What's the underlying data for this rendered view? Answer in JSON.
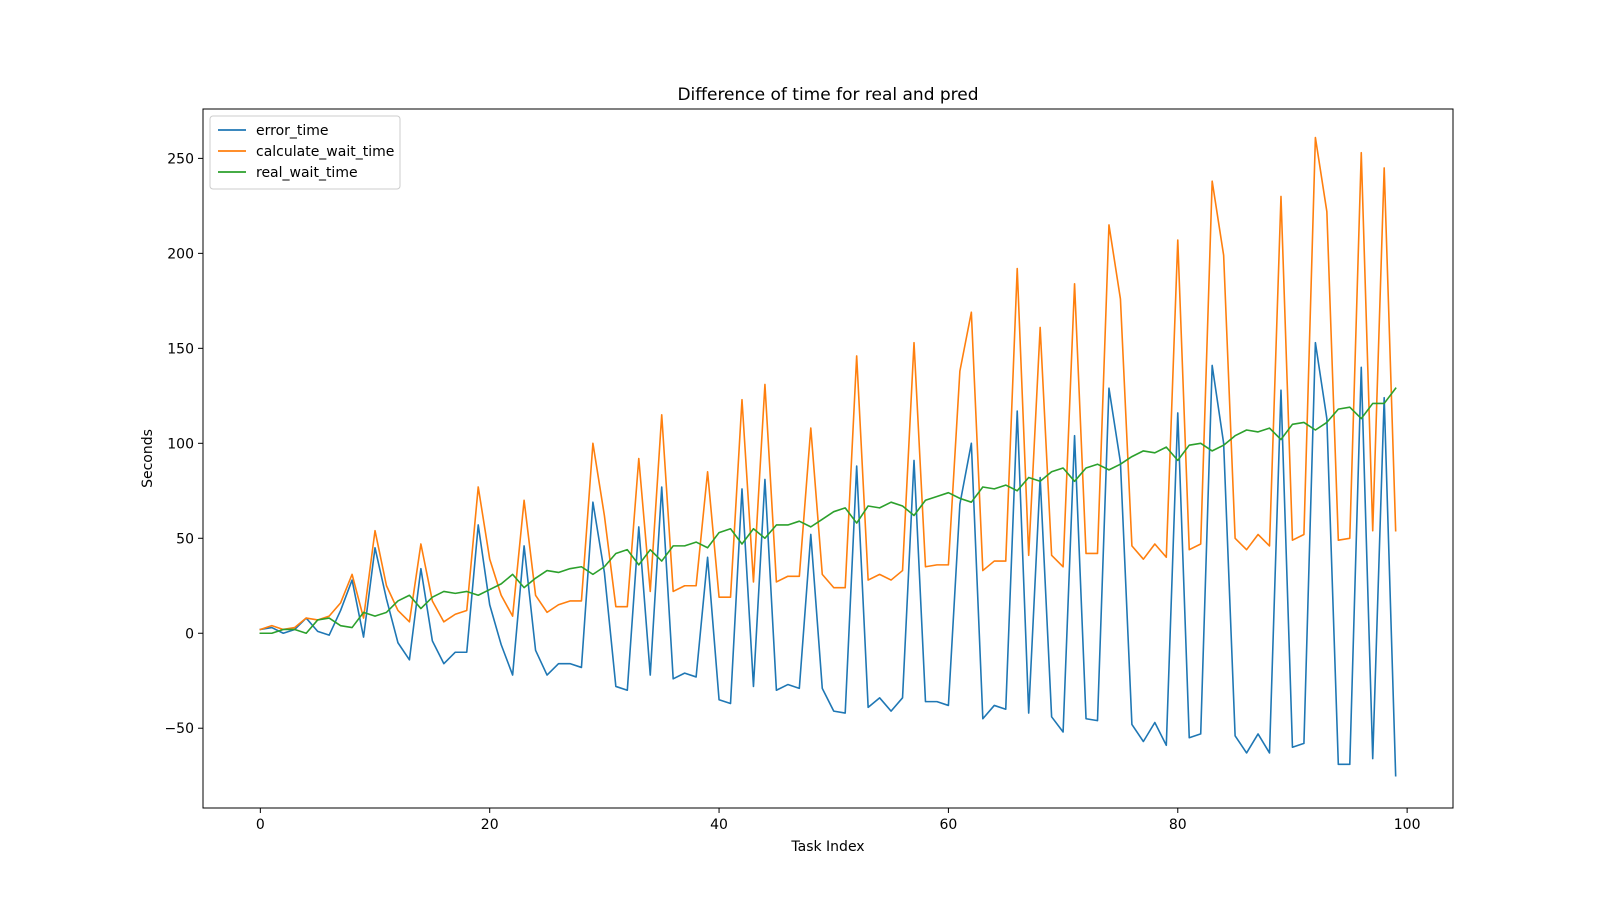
{
  "chart_data": {
    "type": "line",
    "title": "Difference of time for real and pred",
    "xlabel": "Task Index",
    "ylabel": "Seconds",
    "xlim": [
      -5,
      104
    ],
    "ylim": [
      -92,
      276
    ],
    "xticks": [
      0,
      20,
      40,
      60,
      80,
      100
    ],
    "yticks": [
      -50,
      0,
      50,
      100,
      150,
      200,
      250
    ],
    "grid": false,
    "legend_position": "upper left",
    "series": [
      {
        "name": "error_time",
        "color": "#1f77b4",
        "values": [
          2,
          3,
          0,
          2,
          8,
          1,
          -1,
          12,
          28,
          -2,
          45,
          18,
          -5,
          -14,
          34,
          -4,
          -16,
          -10,
          -10,
          57,
          15,
          -6,
          -22,
          46,
          -9,
          -22,
          -16,
          -16,
          -18,
          69,
          32,
          -28,
          -30,
          56,
          -22,
          77,
          -24,
          -21,
          -23,
          40,
          -35,
          -37,
          76,
          -28,
          81,
          -30,
          -27,
          -29,
          52,
          -29,
          -41,
          -42,
          88,
          -39,
          -34,
          -41,
          -34,
          91,
          -36,
          -36,
          -38,
          68,
          100,
          -45,
          -38,
          -40,
          117,
          -42,
          82,
          -44,
          -52,
          104,
          -45,
          -46,
          129,
          90,
          -48,
          -57,
          -47,
          -59,
          116,
          -55,
          -53,
          141,
          100,
          -54,
          -63,
          -53,
          -63,
          128,
          -60,
          -58,
          153,
          113,
          -69,
          -69,
          140,
          -66,
          124,
          -75
        ]
      },
      {
        "name": "calculate_wait_time",
        "color": "#ff7f0e",
        "values": [
          2,
          4,
          2,
          3,
          8,
          7,
          9,
          16,
          31,
          8,
          54,
          25,
          12,
          6,
          47,
          17,
          6,
          10,
          12,
          77,
          39,
          20,
          9,
          70,
          20,
          11,
          15,
          17,
          17,
          100,
          62,
          14,
          14,
          92,
          22,
          115,
          22,
          25,
          25,
          85,
          19,
          19,
          123,
          27,
          131,
          27,
          30,
          30,
          108,
          31,
          24,
          24,
          146,
          28,
          31,
          28,
          33,
          153,
          35,
          36,
          36,
          138,
          169,
          33,
          38,
          38,
          192,
          41,
          161,
          41,
          35,
          184,
          42,
          42,
          215,
          176,
          46,
          39,
          47,
          40,
          207,
          44,
          47,
          238,
          199,
          50,
          44,
          52,
          46,
          230,
          49,
          52,
          261,
          222,
          49,
          50,
          253,
          54,
          245,
          54
        ]
      },
      {
        "name": "real_wait_time",
        "color": "#2ca02c",
        "values": [
          0,
          0,
          2,
          2,
          0,
          7,
          8,
          4,
          3,
          11,
          9,
          11,
          17,
          20,
          13,
          19,
          22,
          21,
          22,
          20,
          23,
          26,
          31,
          24,
          29,
          33,
          32,
          34,
          35,
          31,
          35,
          42,
          44,
          36,
          44,
          38,
          46,
          46,
          48,
          45,
          53,
          55,
          47,
          55,
          50,
          57,
          57,
          59,
          56,
          60,
          64,
          66,
          58,
          67,
          66,
          69,
          67,
          62,
          70,
          72,
          74,
          71,
          69,
          77,
          76,
          78,
          75,
          82,
          80,
          85,
          87,
          80,
          87,
          89,
          86,
          89,
          93,
          96,
          95,
          98,
          91,
          99,
          100,
          96,
          99,
          104,
          107,
          106,
          108,
          102,
          110,
          111,
          107,
          111,
          118,
          119,
          113,
          121,
          121,
          129
        ]
      }
    ]
  }
}
